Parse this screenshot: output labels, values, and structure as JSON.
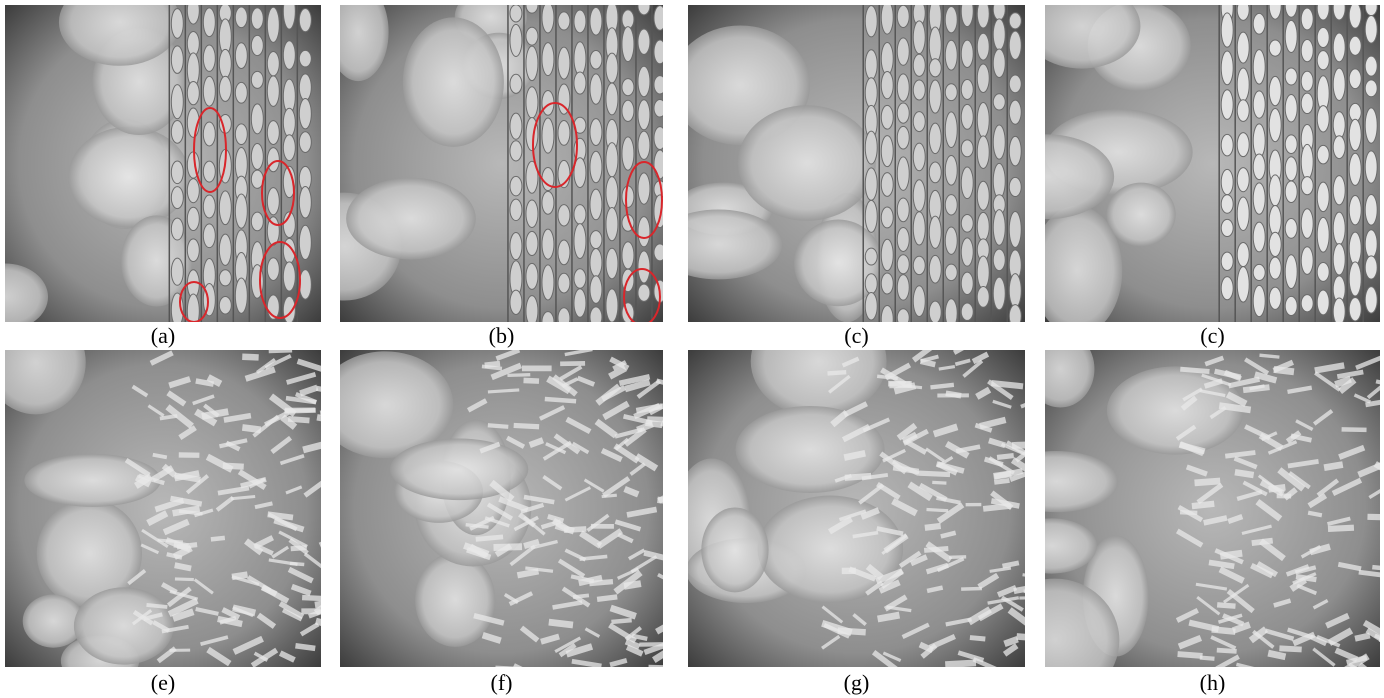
{
  "figure": {
    "panels": [
      {
        "label": "(a)"
      },
      {
        "label": "(b)"
      },
      {
        "label": "(c)"
      },
      {
        "label": "(c)"
      },
      {
        "label": "(e)"
      },
      {
        "label": "(f)"
      },
      {
        "label": "(g)"
      },
      {
        "label": "(h)"
      }
    ]
  }
}
